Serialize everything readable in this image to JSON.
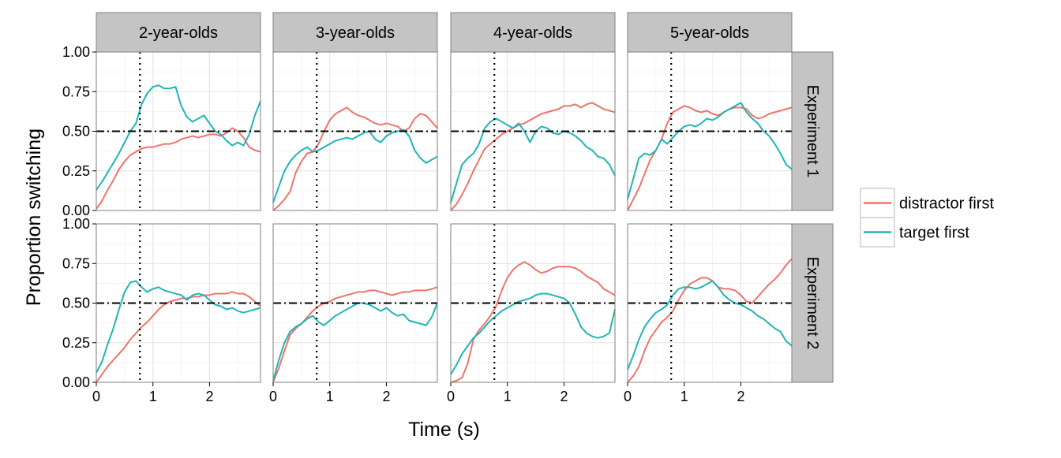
{
  "chart_data": {
    "type": "line",
    "xlabel": "Time (s)",
    "ylabel": "Proportion switching",
    "xlim": [
      0,
      2.9
    ],
    "ylim": [
      0,
      1
    ],
    "x_ticks": [
      0,
      1,
      2
    ],
    "x_tick_labels": [
      "0",
      "1",
      "2"
    ],
    "y_ticks": [
      0,
      0.25,
      0.5,
      0.75,
      1
    ],
    "y_tick_labels": [
      "0.00",
      "0.25",
      "0.50",
      "0.75",
      "1.00"
    ],
    "grid": true,
    "legend_position": "right",
    "reference_lines": {
      "horizontal_y": 0.5,
      "vertical_x": 0.77
    },
    "colors": {
      "distractor first": "#F0736A",
      "target first": "#1FB5B5"
    },
    "columns": [
      "2-year-olds",
      "3-year-olds",
      "4-year-olds",
      "5-year-olds"
    ],
    "rows": [
      "Experiment 1",
      "Experiment 2"
    ],
    "legend": [
      "distractor first",
      "target first"
    ],
    "x": [
      0,
      0.1,
      0.2,
      0.3,
      0.4,
      0.5,
      0.6,
      0.7,
      0.8,
      0.9,
      1.0,
      1.1,
      1.2,
      1.3,
      1.4,
      1.5,
      1.6,
      1.7,
      1.8,
      1.9,
      2.0,
      2.1,
      2.2,
      2.3,
      2.4,
      2.5,
      2.6,
      2.7,
      2.8,
      2.9
    ],
    "panels": [
      {
        "row": "Experiment 1",
        "column": "2-year-olds",
        "series": [
          {
            "name": "distractor first",
            "values": [
              0.01,
              0.06,
              0.13,
              0.19,
              0.26,
              0.31,
              0.35,
              0.37,
              0.39,
              0.4,
              0.4,
              0.41,
              0.42,
              0.42,
              0.43,
              0.45,
              0.46,
              0.47,
              0.46,
              0.47,
              0.48,
              0.48,
              0.47,
              0.49,
              0.52,
              0.5,
              0.46,
              0.4,
              0.38,
              0.37
            ]
          },
          {
            "name": "target first",
            "values": [
              0.13,
              0.18,
              0.24,
              0.3,
              0.36,
              0.43,
              0.5,
              0.55,
              0.67,
              0.74,
              0.78,
              0.79,
              0.77,
              0.77,
              0.78,
              0.66,
              0.59,
              0.56,
              0.58,
              0.6,
              0.55,
              0.5,
              0.48,
              0.44,
              0.41,
              0.43,
              0.41,
              0.48,
              0.6,
              0.69
            ]
          }
        ]
      },
      {
        "row": "Experiment 1",
        "column": "3-year-olds",
        "series": [
          {
            "name": "distractor first",
            "values": [
              0.0,
              0.03,
              0.07,
              0.12,
              0.24,
              0.31,
              0.36,
              0.37,
              0.42,
              0.5,
              0.57,
              0.61,
              0.63,
              0.65,
              0.62,
              0.6,
              0.59,
              0.57,
              0.55,
              0.54,
              0.55,
              0.54,
              0.53,
              0.5,
              0.52,
              0.58,
              0.61,
              0.6,
              0.56,
              0.52
            ]
          },
          {
            "name": "target first",
            "values": [
              0.05,
              0.15,
              0.25,
              0.31,
              0.35,
              0.38,
              0.4,
              0.37,
              0.38,
              0.4,
              0.42,
              0.44,
              0.45,
              0.46,
              0.45,
              0.47,
              0.49,
              0.5,
              0.45,
              0.43,
              0.47,
              0.49,
              0.5,
              0.51,
              0.47,
              0.38,
              0.33,
              0.3,
              0.32,
              0.34
            ]
          }
        ]
      },
      {
        "row": "Experiment 1",
        "column": "4-year-olds",
        "series": [
          {
            "name": "distractor first",
            "values": [
              0.0,
              0.04,
              0.1,
              0.17,
              0.25,
              0.32,
              0.39,
              0.42,
              0.45,
              0.48,
              0.5,
              0.52,
              0.54,
              0.55,
              0.57,
              0.59,
              0.61,
              0.62,
              0.63,
              0.64,
              0.66,
              0.66,
              0.67,
              0.65,
              0.67,
              0.68,
              0.66,
              0.64,
              0.63,
              0.62
            ]
          },
          {
            "name": "target first",
            "values": [
              0.05,
              0.17,
              0.29,
              0.33,
              0.36,
              0.42,
              0.52,
              0.56,
              0.58,
              0.56,
              0.54,
              0.52,
              0.55,
              0.5,
              0.43,
              0.5,
              0.53,
              0.52,
              0.49,
              0.48,
              0.5,
              0.49,
              0.47,
              0.44,
              0.4,
              0.38,
              0.34,
              0.33,
              0.29,
              0.22
            ]
          }
        ]
      },
      {
        "row": "Experiment 1",
        "column": "5-year-olds",
        "series": [
          {
            "name": "distractor first",
            "values": [
              0.0,
              0.07,
              0.14,
              0.23,
              0.32,
              0.38,
              0.45,
              0.55,
              0.62,
              0.64,
              0.66,
              0.65,
              0.63,
              0.62,
              0.63,
              0.61,
              0.6,
              0.62,
              0.64,
              0.65,
              0.65,
              0.64,
              0.6,
              0.58,
              0.59,
              0.61,
              0.62,
              0.63,
              0.64,
              0.65
            ]
          },
          {
            "name": "target first",
            "values": [
              0.07,
              0.2,
              0.33,
              0.36,
              0.35,
              0.38,
              0.45,
              0.42,
              0.46,
              0.5,
              0.53,
              0.54,
              0.53,
              0.55,
              0.58,
              0.57,
              0.59,
              0.62,
              0.64,
              0.66,
              0.68,
              0.62,
              0.58,
              0.55,
              0.5,
              0.47,
              0.42,
              0.36,
              0.29,
              0.26
            ]
          }
        ]
      },
      {
        "row": "Experiment 2",
        "column": "2-year-olds",
        "series": [
          {
            "name": "distractor first",
            "values": [
              0.0,
              0.05,
              0.1,
              0.14,
              0.18,
              0.22,
              0.27,
              0.31,
              0.35,
              0.38,
              0.42,
              0.46,
              0.49,
              0.51,
              0.52,
              0.53,
              0.53,
              0.54,
              0.54,
              0.55,
              0.55,
              0.56,
              0.56,
              0.56,
              0.57,
              0.56,
              0.56,
              0.54,
              0.51,
              0.48
            ]
          },
          {
            "name": "target first",
            "values": [
              0.06,
              0.13,
              0.24,
              0.34,
              0.46,
              0.57,
              0.63,
              0.64,
              0.6,
              0.57,
              0.59,
              0.6,
              0.58,
              0.57,
              0.56,
              0.55,
              0.52,
              0.55,
              0.56,
              0.55,
              0.52,
              0.49,
              0.48,
              0.46,
              0.47,
              0.45,
              0.44,
              0.45,
              0.46,
              0.47
            ]
          }
        ]
      },
      {
        "row": "Experiment 2",
        "column": "3-year-olds",
        "series": [
          {
            "name": "distractor first",
            "values": [
              0.0,
              0.09,
              0.2,
              0.3,
              0.34,
              0.37,
              0.41,
              0.45,
              0.48,
              0.5,
              0.51,
              0.53,
              0.54,
              0.55,
              0.56,
              0.57,
              0.57,
              0.58,
              0.58,
              0.57,
              0.56,
              0.55,
              0.56,
              0.57,
              0.57,
              0.58,
              0.58,
              0.58,
              0.59,
              0.6
            ]
          },
          {
            "name": "target first",
            "values": [
              0.01,
              0.14,
              0.25,
              0.32,
              0.35,
              0.37,
              0.4,
              0.42,
              0.38,
              0.36,
              0.39,
              0.42,
              0.44,
              0.46,
              0.48,
              0.5,
              0.5,
              0.49,
              0.47,
              0.45,
              0.47,
              0.44,
              0.42,
              0.43,
              0.39,
              0.38,
              0.37,
              0.36,
              0.41,
              0.5
            ]
          }
        ]
      },
      {
        "row": "Experiment 2",
        "column": "4-year-olds",
        "series": [
          {
            "name": "distractor first",
            "values": [
              0.0,
              0.01,
              0.03,
              0.12,
              0.27,
              0.33,
              0.37,
              0.42,
              0.48,
              0.58,
              0.66,
              0.71,
              0.74,
              0.76,
              0.74,
              0.71,
              0.69,
              0.7,
              0.72,
              0.73,
              0.73,
              0.73,
              0.72,
              0.7,
              0.67,
              0.65,
              0.63,
              0.59,
              0.57,
              0.55
            ]
          },
          {
            "name": "target first",
            "values": [
              0.05,
              0.11,
              0.18,
              0.23,
              0.28,
              0.31,
              0.35,
              0.39,
              0.42,
              0.45,
              0.47,
              0.49,
              0.51,
              0.52,
              0.53,
              0.55,
              0.56,
              0.56,
              0.55,
              0.54,
              0.53,
              0.5,
              0.43,
              0.35,
              0.31,
              0.29,
              0.28,
              0.29,
              0.31,
              0.46
            ]
          }
        ]
      },
      {
        "row": "Experiment 2",
        "column": "5-year-olds",
        "series": [
          {
            "name": "distractor first",
            "values": [
              0.0,
              0.04,
              0.1,
              0.2,
              0.28,
              0.33,
              0.38,
              0.41,
              0.45,
              0.52,
              0.58,
              0.62,
              0.64,
              0.66,
              0.66,
              0.64,
              0.6,
              0.59,
              0.59,
              0.58,
              0.55,
              0.51,
              0.5,
              0.54,
              0.58,
              0.62,
              0.65,
              0.69,
              0.74,
              0.78
            ]
          },
          {
            "name": "target first",
            "values": [
              0.08,
              0.17,
              0.27,
              0.35,
              0.4,
              0.44,
              0.46,
              0.49,
              0.55,
              0.59,
              0.6,
              0.6,
              0.59,
              0.6,
              0.62,
              0.64,
              0.6,
              0.55,
              0.52,
              0.5,
              0.49,
              0.47,
              0.45,
              0.42,
              0.4,
              0.37,
              0.34,
              0.32,
              0.26,
              0.23
            ]
          }
        ]
      }
    ]
  }
}
